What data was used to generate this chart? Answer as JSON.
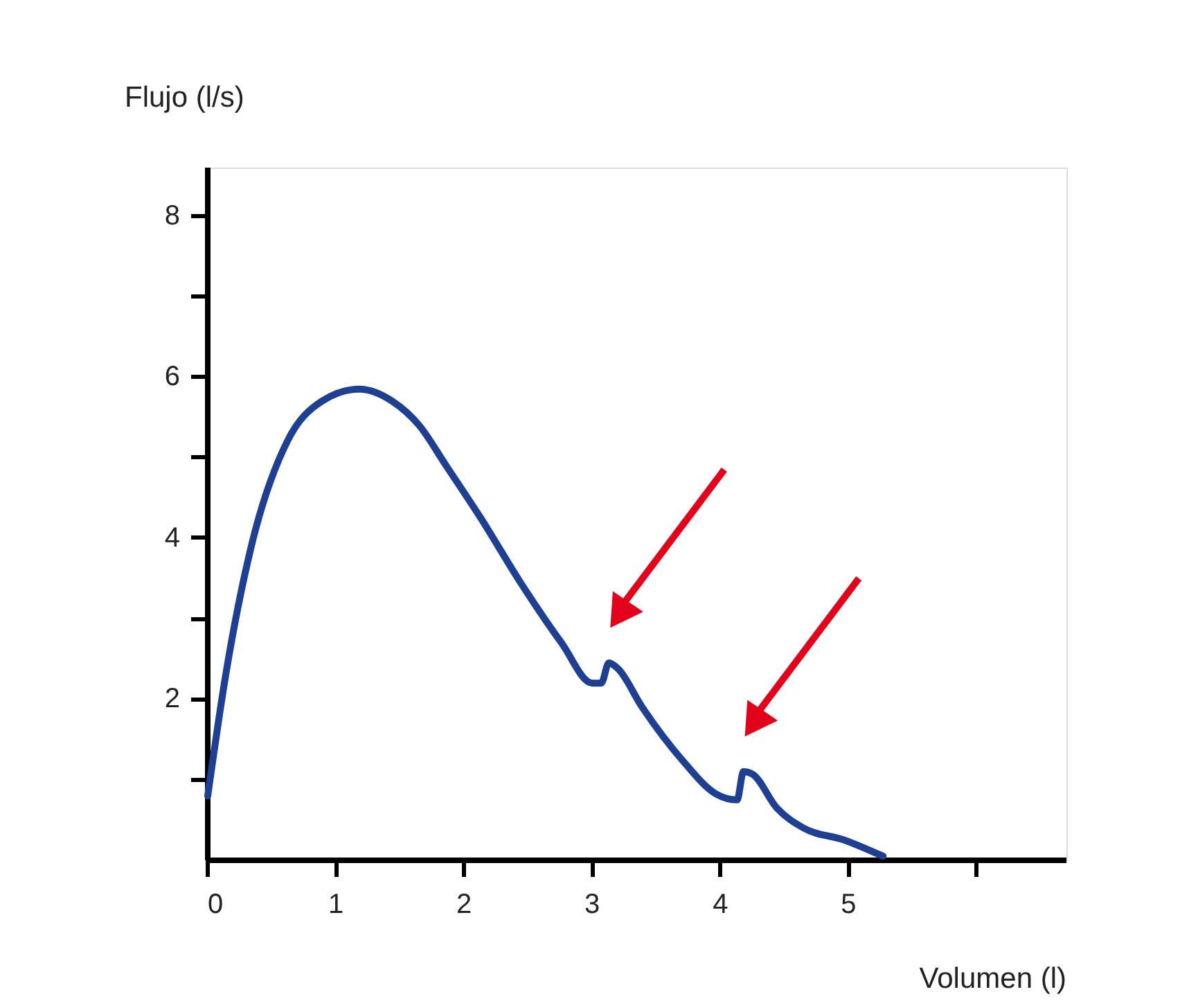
{
  "chart_data": {
    "type": "line",
    "xlabel": "Volumen (l)",
    "ylabel": "Flujo (l/s)",
    "x": [
      0,
      0.14,
      0.34,
      0.62,
      0.89,
      1.18,
      1.44,
      1.65,
      1.86,
      2.13,
      2.44,
      2.76,
      3.0,
      3.07,
      3.13,
      3.2,
      3.39,
      3.71,
      3.97,
      4.13,
      4.18,
      4.25,
      4.44,
      4.65,
      4.97,
      5.27
    ],
    "series": [
      {
        "color": "#1f3f93",
        "values": [
          0.8,
          2.3,
          3.9,
          5.2,
          5.7,
          5.85,
          5.7,
          5.4,
          4.9,
          4.25,
          3.45,
          2.7,
          2.2,
          2.2,
          2.45,
          2.38,
          1.9,
          1.23,
          0.82,
          0.75,
          1.1,
          1.07,
          0.65,
          0.4,
          0.25,
          0.05
        ]
      }
    ],
    "xlim": [
      0,
      6.7
    ],
    "xticks": [
      0,
      1,
      2,
      3,
      4,
      5,
      {
        "value": 6,
        "label": null
      }
    ],
    "ylim": [
      0,
      8.6
    ],
    "yticks": [
      {
        "value": 1,
        "label": null
      },
      2,
      {
        "value": 3,
        "label": null
      },
      4,
      {
        "value": 5,
        "label": null
      },
      6,
      {
        "value": 7,
        "label": null
      },
      8
    ],
    "grid": false,
    "marker": "none",
    "line_style": "solid"
  }
}
